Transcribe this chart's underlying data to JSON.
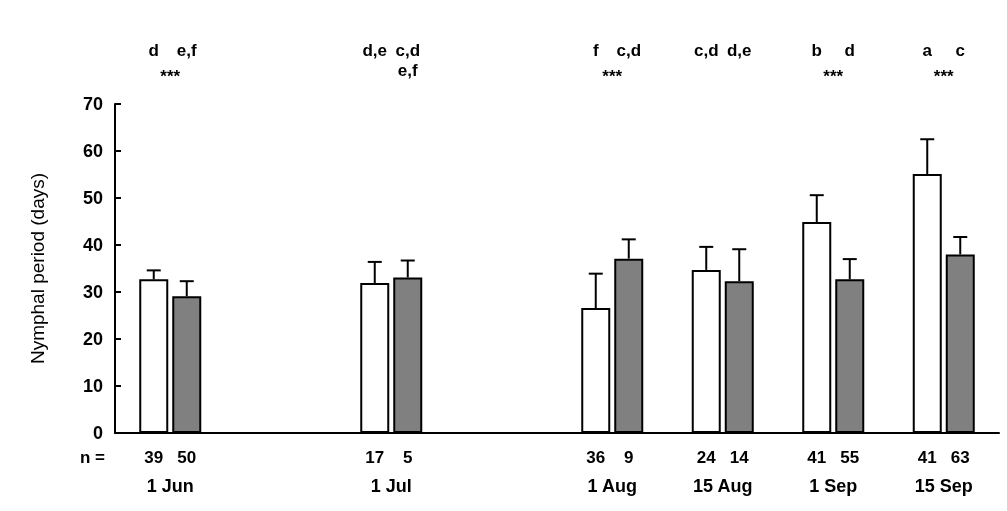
{
  "chart_data": {
    "type": "bar",
    "ylabel": "Nymphal period (days)",
    "categories": [
      "1 Jun",
      null,
      "1 Jul",
      null,
      "1 Aug",
      "15 Aug",
      "1 Sep",
      "15 Sep"
    ],
    "series": [
      {
        "color": "#ffffff",
        "values": [
          32.7,
          null,
          31.9,
          null,
          26.6,
          34.7,
          44.9,
          55.1
        ],
        "errors": [
          [
            32.7,
            34.6
          ],
          null,
          [
            31.9,
            36.4
          ],
          null,
          [
            26.6,
            33.9
          ],
          [
            34.7,
            39.6
          ],
          [
            44.9,
            50.6
          ],
          [
            55.1,
            62.5
          ]
        ]
      },
      {
        "color": "#808080",
        "values": [
          29.1,
          null,
          33.1,
          null,
          37.1,
          32.3,
          32.7,
          38.0
        ],
        "errors": [
          [
            29.1,
            32.3
          ],
          null,
          [
            33.1,
            36.7
          ],
          null,
          [
            37.1,
            41.2
          ],
          [
            32.3,
            39.1
          ],
          [
            32.7,
            37.0
          ],
          [
            38.0,
            41.7
          ]
        ]
      }
    ],
    "ylim": [
      0,
      70
    ],
    "yticks": [
      0,
      10,
      20,
      30,
      40,
      50,
      60,
      70
    ],
    "grid": false,
    "annotations": [
      "n =",
      "39",
      "50",
      "17",
      "5",
      "36",
      "9",
      "24",
      "14",
      "41",
      "55",
      "41",
      "63",
      "d",
      "e,f",
      "d,e",
      "c,d\ne,f",
      "f",
      "c,d",
      "c,d",
      "d,e",
      "b",
      "d",
      "a",
      "c",
      "***",
      "***",
      "***",
      "***"
    ]
  }
}
